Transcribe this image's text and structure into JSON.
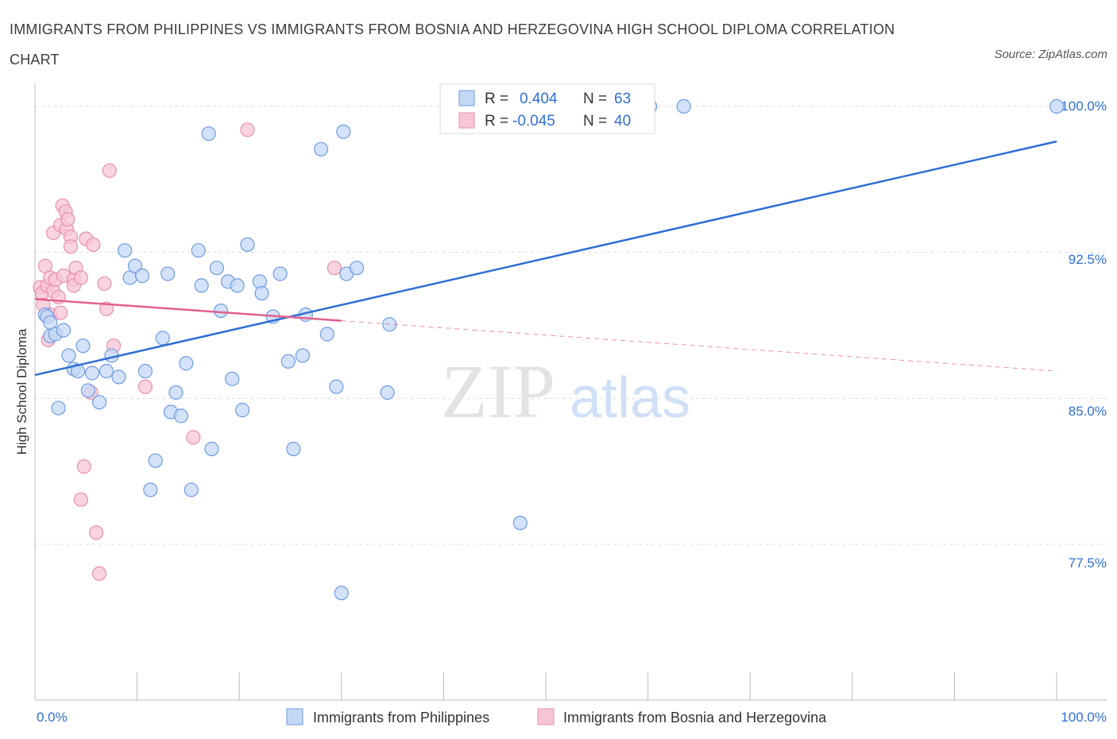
{
  "title": "IMMIGRANTS FROM PHILIPPINES VS IMMIGRANTS FROM BOSNIA AND HERZEGOVINA HIGH SCHOOL DIPLOMA CORRELATION CHART",
  "source": "Source: ZipAtlas.com",
  "watermark": {
    "zip": "ZIP",
    "atlas": "atlas"
  },
  "colors": {
    "blue": "#2f6fd3",
    "blue_fill": "#c4d8f5",
    "pink": "#e0608f",
    "pink_fill": "#f7c6d6",
    "grid": "#dddddd"
  },
  "legend": {
    "r_label": "R =",
    "n_label": "N =",
    "series1": {
      "r": "0.404",
      "n": "63"
    },
    "series2": {
      "r": "-0.045",
      "n": "40"
    }
  },
  "chart_data": {
    "type": "scatter",
    "xlabel": "",
    "ylabel": "High School Diploma",
    "xlim": [
      0,
      100
    ],
    "ylim": [
      69.5,
      100.2
    ],
    "x_tick_labels": [
      "0.0%",
      "100.0%"
    ],
    "y_ticks": [
      77.5,
      85.0,
      92.5,
      100.0
    ],
    "y_tick_labels": [
      "77.5%",
      "85.0%",
      "92.5%",
      "100.0%"
    ],
    "series": [
      {
        "name": "Immigrants from Philippines",
        "color": "blue",
        "trend": {
          "x": [
            0,
            100
          ],
          "y": [
            86.2,
            98.2
          ],
          "dashed_from": null
        },
        "points": [
          [
            1,
            89.3
          ],
          [
            1.2,
            89.2
          ],
          [
            1.5,
            88.9
          ],
          [
            1.5,
            88.2
          ],
          [
            2,
            88.3
          ],
          [
            2.3,
            84.5
          ],
          [
            2.8,
            88.5
          ],
          [
            3.3,
            87.2
          ],
          [
            3.8,
            86.5
          ],
          [
            4.2,
            86.4
          ],
          [
            4.7,
            87.7
          ],
          [
            5.2,
            85.4
          ],
          [
            5.6,
            86.3
          ],
          [
            6.3,
            84.8
          ],
          [
            7,
            86.4
          ],
          [
            7.5,
            87.2
          ],
          [
            8.2,
            86.1
          ],
          [
            8.8,
            92.6
          ],
          [
            9.3,
            91.2
          ],
          [
            9.8,
            91.8
          ],
          [
            10.5,
            91.3
          ],
          [
            10.8,
            86.4
          ],
          [
            11.3,
            80.3
          ],
          [
            11.8,
            81.8
          ],
          [
            12.5,
            88.1
          ],
          [
            13,
            91.4
          ],
          [
            13.3,
            84.3
          ],
          [
            13.8,
            85.3
          ],
          [
            14.3,
            84.1
          ],
          [
            14.8,
            86.8
          ],
          [
            15.3,
            80.3
          ],
          [
            16,
            92.6
          ],
          [
            16.3,
            90.8
          ],
          [
            17,
            98.6
          ],
          [
            17.3,
            82.4
          ],
          [
            17.8,
            91.7
          ],
          [
            18.2,
            89.5
          ],
          [
            18.9,
            91
          ],
          [
            19.3,
            86
          ],
          [
            19.8,
            90.8
          ],
          [
            20.3,
            84.4
          ],
          [
            20.8,
            92.9
          ],
          [
            22,
            91
          ],
          [
            22.2,
            90.4
          ],
          [
            23.3,
            89.2
          ],
          [
            24,
            91.4
          ],
          [
            24.8,
            86.9
          ],
          [
            25.3,
            82.4
          ],
          [
            26.2,
            87.2
          ],
          [
            26.5,
            89.3
          ],
          [
            28,
            97.8
          ],
          [
            28.6,
            88.3
          ],
          [
            29.5,
            85.6
          ],
          [
            30.2,
            98.7
          ],
          [
            30.5,
            91.4
          ],
          [
            31.5,
            91.7
          ],
          [
            34.5,
            85.3
          ],
          [
            34.7,
            88.8
          ],
          [
            30,
            75
          ],
          [
            47.5,
            78.6
          ],
          [
            60.2,
            100
          ],
          [
            63.5,
            100
          ],
          [
            100,
            100
          ]
        ]
      },
      {
        "name": "Immigrants from Bosnia and Herzegovina",
        "color": "pink",
        "trend": {
          "x": [
            0,
            100
          ],
          "y": [
            90.1,
            86.4
          ],
          "dashed_from": 30
        },
        "points": [
          [
            0.5,
            90.7
          ],
          [
            0.7,
            90.4
          ],
          [
            0.8,
            89.8
          ],
          [
            1,
            91.8
          ],
          [
            1.2,
            90.8
          ],
          [
            1.3,
            88
          ],
          [
            1.5,
            89.3
          ],
          [
            1.5,
            91.2
          ],
          [
            1.8,
            90.5
          ],
          [
            1.8,
            93.5
          ],
          [
            2,
            91.1
          ],
          [
            2.3,
            90.2
          ],
          [
            2.5,
            89.4
          ],
          [
            2.5,
            93.9
          ],
          [
            2.7,
            94.9
          ],
          [
            2.8,
            91.3
          ],
          [
            3,
            94.6
          ],
          [
            3.1,
            93.7
          ],
          [
            3.2,
            94.2
          ],
          [
            3.5,
            93.3
          ],
          [
            3.5,
            92.8
          ],
          [
            3.8,
            91.1
          ],
          [
            3.8,
            90.8
          ],
          [
            4,
            91.7
          ],
          [
            4.5,
            91.2
          ],
          [
            4.5,
            79.8
          ],
          [
            4.8,
            81.5
          ],
          [
            5,
            93.2
          ],
          [
            5.5,
            85.3
          ],
          [
            5.7,
            92.9
          ],
          [
            6,
            78.1
          ],
          [
            6.3,
            76
          ],
          [
            6.8,
            90.9
          ],
          [
            7,
            89.6
          ],
          [
            7.3,
            96.7
          ],
          [
            7.7,
            87.7
          ],
          [
            10.8,
            85.6
          ],
          [
            15.5,
            83
          ],
          [
            20.8,
            98.8
          ],
          [
            29.3,
            91.7
          ]
        ]
      }
    ]
  },
  "bottom_legend": [
    "Immigrants from Philippines",
    "Immigrants from Bosnia and Herzegovina"
  ]
}
